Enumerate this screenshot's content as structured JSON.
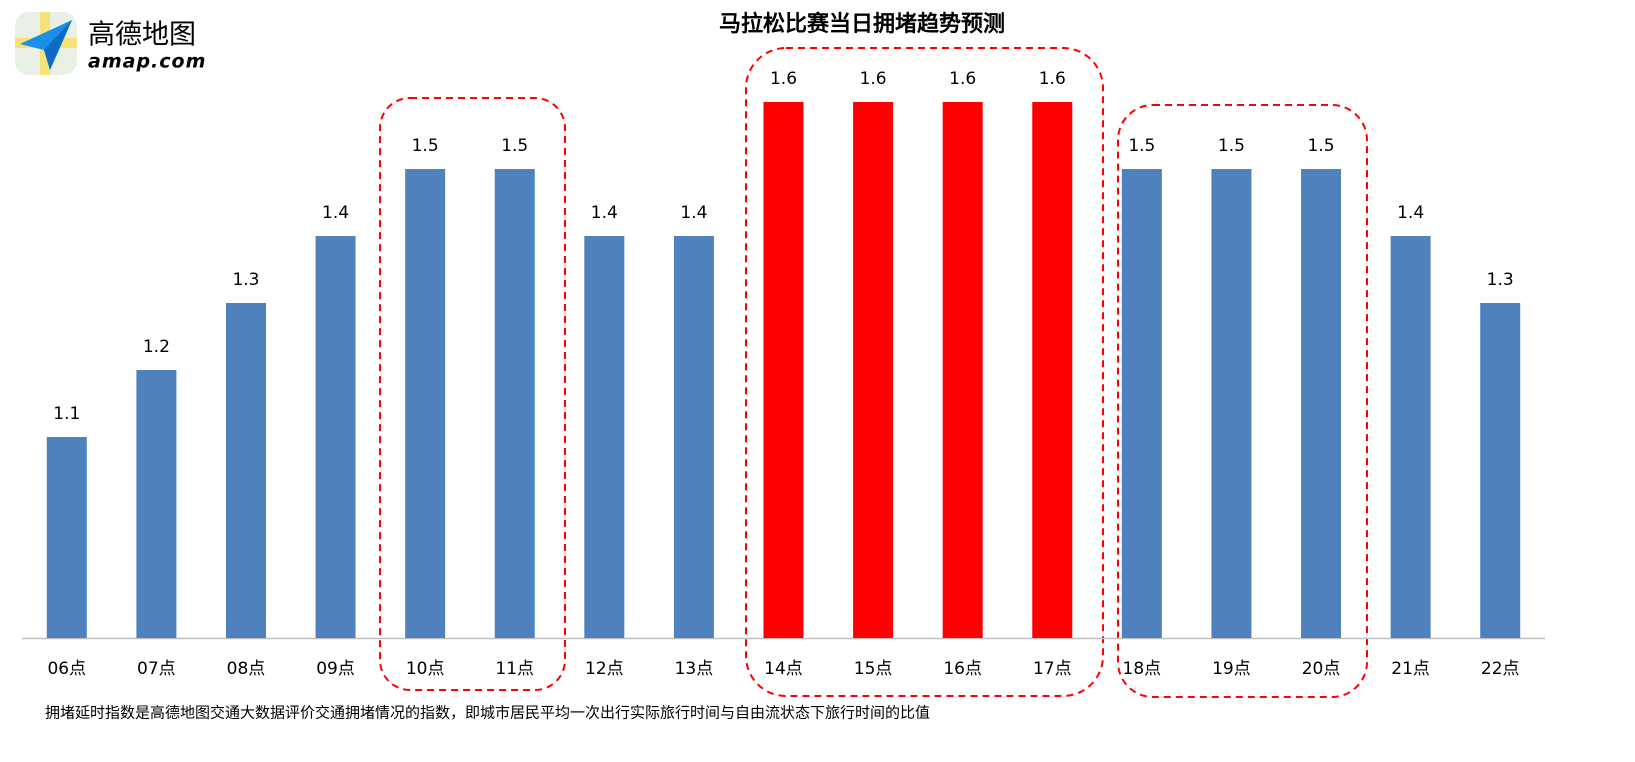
{
  "logo": {
    "name": "高德地图",
    "site": "amap.com"
  },
  "chart_data": {
    "type": "bar",
    "title": "马拉松比赛当日拥堵趋势预测",
    "categories": [
      "06点",
      "07点",
      "08点",
      "09点",
      "10点",
      "11点",
      "12点",
      "13点",
      "14点",
      "15点",
      "16点",
      "17点",
      "18点",
      "19点",
      "20点",
      "21点",
      "22点"
    ],
    "values": [
      1.1,
      1.2,
      1.3,
      1.4,
      1.5,
      1.5,
      1.4,
      1.4,
      1.6,
      1.6,
      1.6,
      1.6,
      1.5,
      1.5,
      1.5,
      1.4,
      1.3
    ],
    "colors": [
      "#4f81bd",
      "#4f81bd",
      "#4f81bd",
      "#4f81bd",
      "#4f81bd",
      "#4f81bd",
      "#4f81bd",
      "#4f81bd",
      "#ff0000",
      "#ff0000",
      "#ff0000",
      "#ff0000",
      "#4f81bd",
      "#4f81bd",
      "#4f81bd",
      "#4f81bd",
      "#4f81bd"
    ],
    "ylim": [
      0.8,
      1.7
    ],
    "note": "拥堵延时指数是高德地图交通大数据评价交通拥堵情况的指数，即城市居民平均一次出行实际旅行时间与自由流状态下旅行时间的比值"
  }
}
